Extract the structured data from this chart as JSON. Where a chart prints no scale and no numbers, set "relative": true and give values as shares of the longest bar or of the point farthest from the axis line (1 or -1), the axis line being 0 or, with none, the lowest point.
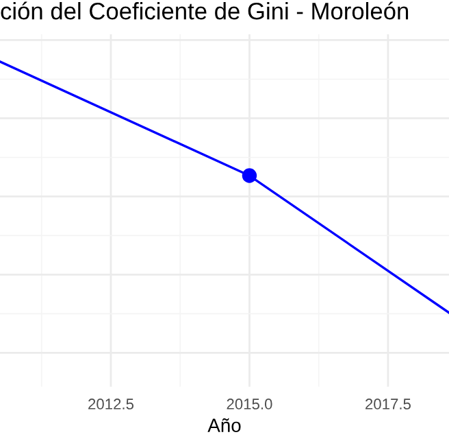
{
  "chart_data": {
    "type": "line",
    "title": "ción del Coeficiente de Gini - Moroleón",
    "xlabel": "Año",
    "x": [
      2010.5,
      2015,
      2018.6
    ],
    "series": [
      {
        "color": "#0000ff",
        "values": [
          1,
          0.546,
          0
        ],
        "marker": "none"
      },
      {
        "type": "scatter",
        "color": "#0000ff",
        "x": [
          2015
        ],
        "values": [
          0.546
        ],
        "marker": "circle"
      }
    ],
    "relative": true,
    "xlim": [
      2010.5,
      2018.6
    ],
    "xticks": [
      2012.5,
      {
        "value": 2015,
        "label": "2015.0"
      },
      2017.5
    ],
    "grid": true,
    "line_style": "solid"
  }
}
